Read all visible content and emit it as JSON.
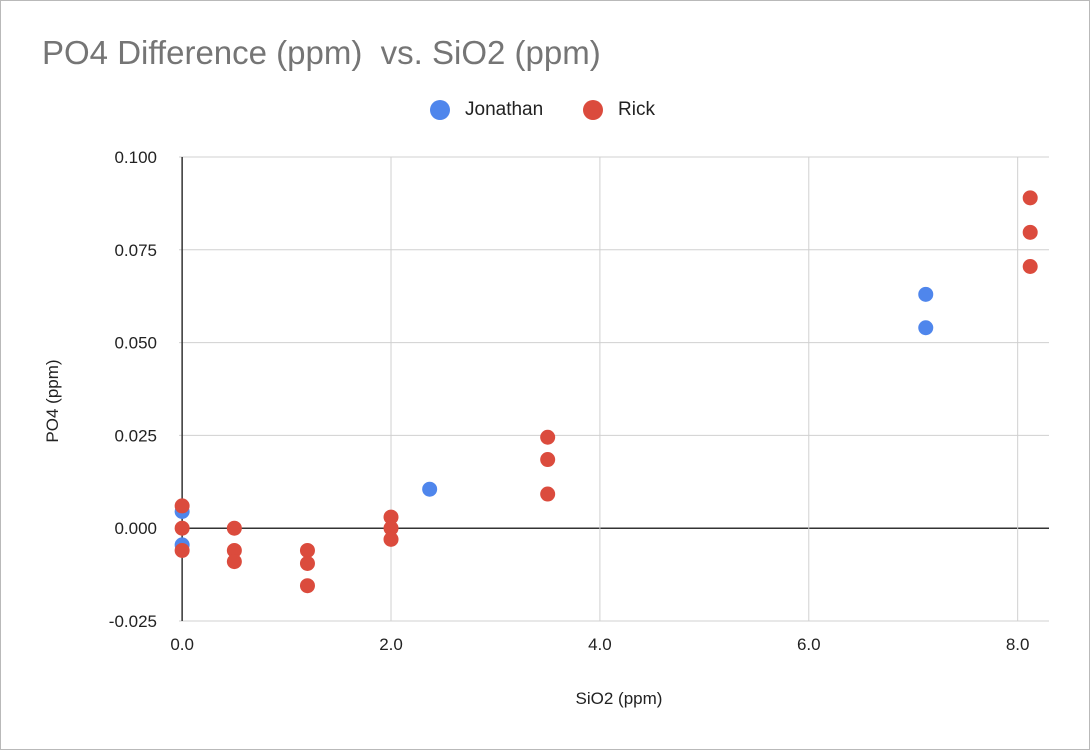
{
  "chart_data": {
    "type": "scatter",
    "title": "PO4 Difference (ppm)  vs. SiO2 (ppm)",
    "xlabel": "SiO2 (ppm)",
    "ylabel": "PO4 (ppm)",
    "xlim": [
      -0.03,
      8.3
    ],
    "ylim": [
      -0.025,
      0.1
    ],
    "xticks": [
      "0.0",
      "2.0",
      "4.0",
      "6.0",
      "8.0"
    ],
    "xtick_values": [
      0,
      2,
      4,
      6,
      8
    ],
    "yticks": [
      "0.100",
      "0.075",
      "0.050",
      "0.025",
      "0.000",
      "-0.025"
    ],
    "ytick_values": [
      0.1,
      0.075,
      0.05,
      0.025,
      0,
      -0.025
    ],
    "grid": true,
    "legend_position": "top",
    "series": [
      {
        "name": "Jonathan",
        "color": "#4f86ec",
        "points": [
          [
            0.0,
            0.0045
          ],
          [
            0.0,
            -0.0045
          ],
          [
            2.37,
            0.0105
          ],
          [
            7.12,
            0.063
          ],
          [
            7.12,
            0.054
          ]
        ]
      },
      {
        "name": "Rick",
        "color": "#db4b3d",
        "points": [
          [
            0.0,
            0.006
          ],
          [
            0.0,
            0.0
          ],
          [
            0.0,
            -0.006
          ],
          [
            0.5,
            0.0
          ],
          [
            0.5,
            -0.006
          ],
          [
            0.5,
            -0.009
          ],
          [
            1.2,
            -0.006
          ],
          [
            1.2,
            -0.0095
          ],
          [
            1.2,
            -0.0155
          ],
          [
            2.0,
            0.003
          ],
          [
            2.0,
            0.0
          ],
          [
            2.0,
            -0.003
          ],
          [
            3.5,
            0.0245
          ],
          [
            3.5,
            0.0185
          ],
          [
            3.5,
            0.0092
          ],
          [
            8.12,
            0.089
          ],
          [
            8.12,
            0.0797
          ],
          [
            8.12,
            0.0705
          ]
        ]
      }
    ]
  }
}
